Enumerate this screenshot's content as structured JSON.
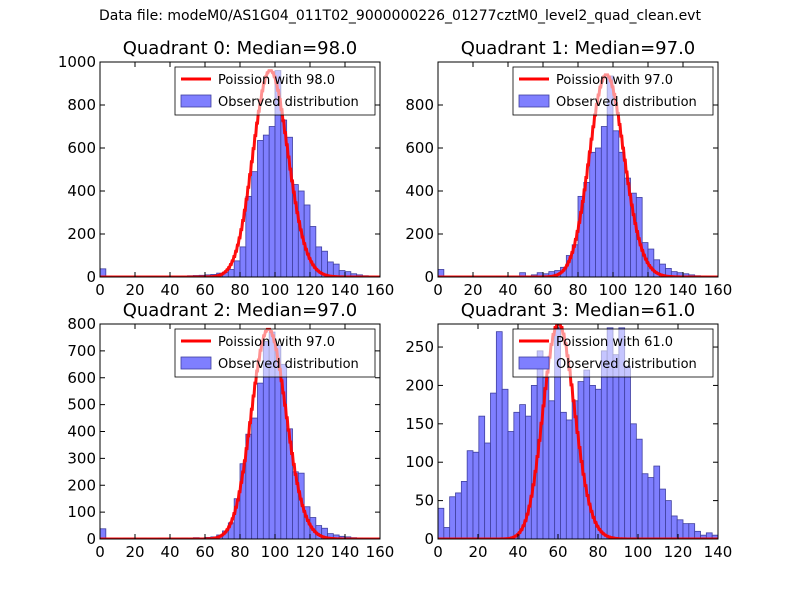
{
  "figure": {
    "suptitle": "Data file: modeM0/AS1G04_011T02_9000000226_01277cztM0_level2_quad_clean.evt"
  },
  "colors": {
    "bar_fill": "#7f7fff",
    "bar_stroke": "#3f3f9f",
    "curve": "#ff0000",
    "axis": "#000000",
    "legend_border": "#000000"
  },
  "chart_data": [
    {
      "type": "bar",
      "title": "Quadrant 0: Median=98.0",
      "xlim": [
        0,
        160
      ],
      "ylim": [
        0,
        1000
      ],
      "xticks": [
        0,
        20,
        40,
        60,
        80,
        100,
        120,
        140,
        160
      ],
      "yticks": [
        0,
        200,
        400,
        600,
        800,
        1000
      ],
      "legend": {
        "location": "upper right",
        "line_label": "Poission with 98.0",
        "bar_label": "Observed distribution"
      },
      "poisson_mean": 98.0,
      "curve_peak": 960,
      "bin_width": 3.33,
      "bins": [
        [
          0,
          38
        ],
        [
          3.33,
          4
        ],
        [
          6.67,
          3
        ],
        [
          10,
          3
        ],
        [
          13.33,
          3
        ],
        [
          16.67,
          2
        ],
        [
          20,
          3
        ],
        [
          23.33,
          2
        ],
        [
          26.67,
          3
        ],
        [
          30,
          3
        ],
        [
          33.33,
          2
        ],
        [
          36.67,
          2
        ],
        [
          40,
          3
        ],
        [
          43.33,
          3
        ],
        [
          46.67,
          4
        ],
        [
          50,
          6
        ],
        [
          53.33,
          7
        ],
        [
          56.67,
          8
        ],
        [
          60,
          10
        ],
        [
          63.33,
          12
        ],
        [
          66.67,
          18
        ],
        [
          70,
          22
        ],
        [
          73.33,
          35
        ],
        [
          76.67,
          75
        ],
        [
          80,
          140
        ],
        [
          83.33,
          375
        ],
        [
          86.67,
          490
        ],
        [
          90,
          635
        ],
        [
          93.33,
          660
        ],
        [
          96.67,
          700
        ],
        [
          100,
          960
        ],
        [
          103.33,
          730
        ],
        [
          106.67,
          650
        ],
        [
          110,
          430
        ],
        [
          113.33,
          400
        ],
        [
          116.67,
          335
        ],
        [
          120,
          235
        ],
        [
          123.33,
          140
        ],
        [
          126.67,
          120
        ],
        [
          130,
          70
        ],
        [
          133.33,
          60
        ],
        [
          136.67,
          30
        ],
        [
          140,
          25
        ],
        [
          143.33,
          15
        ],
        [
          146.67,
          10
        ],
        [
          150,
          6
        ],
        [
          153.33,
          4
        ],
        [
          156.67,
          3
        ]
      ]
    },
    {
      "type": "bar",
      "title": "Quadrant 1: Median=97.0",
      "xlim": [
        0,
        160
      ],
      "ylim": [
        0,
        1000
      ],
      "xticks": [
        0,
        20,
        40,
        60,
        80,
        100,
        120,
        140,
        160
      ],
      "yticks": [
        0,
        200,
        400,
        600,
        800
      ],
      "legend": {
        "location": "upper right",
        "line_label": "Poission with 97.0",
        "bar_label": "Observed distribution"
      },
      "poisson_mean": 97.0,
      "curve_peak": 940,
      "bin_width": 3.33,
      "bins": [
        [
          0,
          35
        ],
        [
          3.33,
          4
        ],
        [
          6.67,
          3
        ],
        [
          10,
          3
        ],
        [
          13.33,
          2
        ],
        [
          16.67,
          3
        ],
        [
          20,
          2
        ],
        [
          23.33,
          2
        ],
        [
          26.67,
          2
        ],
        [
          30,
          2
        ],
        [
          33.33,
          3
        ],
        [
          36.67,
          2
        ],
        [
          40,
          4
        ],
        [
          43.33,
          4
        ],
        [
          46.67,
          20
        ],
        [
          50,
          5
        ],
        [
          53.33,
          10
        ],
        [
          56.67,
          20
        ],
        [
          60,
          15
        ],
        [
          63.33,
          25
        ],
        [
          66.67,
          30
        ],
        [
          70,
          45
        ],
        [
          73.33,
          100
        ],
        [
          76.67,
          150
        ],
        [
          80,
          375
        ],
        [
          83.33,
          440
        ],
        [
          86.67,
          580
        ],
        [
          90,
          600
        ],
        [
          93.33,
          700
        ],
        [
          96.67,
          935
        ],
        [
          100,
          680
        ],
        [
          103.33,
          580
        ],
        [
          106.67,
          460
        ],
        [
          110,
          390
        ],
        [
          113.33,
          370
        ],
        [
          116.67,
          160
        ],
        [
          120,
          130
        ],
        [
          123.33,
          80
        ],
        [
          126.67,
          60
        ],
        [
          130,
          40
        ],
        [
          133.33,
          25
        ],
        [
          136.67,
          20
        ],
        [
          140,
          15
        ],
        [
          143.33,
          10
        ],
        [
          146.67,
          6
        ],
        [
          150,
          4
        ],
        [
          153.33,
          3
        ],
        [
          156.67,
          2
        ]
      ]
    },
    {
      "type": "bar",
      "title": "Quadrant 2: Median=97.0",
      "xlim": [
        0,
        160
      ],
      "ylim": [
        0,
        800
      ],
      "xticks": [
        0,
        20,
        40,
        60,
        80,
        100,
        120,
        140,
        160
      ],
      "yticks": [
        0,
        100,
        200,
        300,
        400,
        500,
        600,
        700,
        800
      ],
      "legend": {
        "location": "upper right",
        "line_label": "Poission with 97.0",
        "bar_label": "Observed distribution"
      },
      "poisson_mean": 97.0,
      "curve_peak": 780,
      "bin_width": 3.33,
      "bins": [
        [
          0,
          38
        ],
        [
          3.33,
          3
        ],
        [
          6.67,
          3
        ],
        [
          10,
          2
        ],
        [
          13.33,
          3
        ],
        [
          16.67,
          2
        ],
        [
          20,
          2
        ],
        [
          23.33,
          3
        ],
        [
          26.67,
          2
        ],
        [
          30,
          2
        ],
        [
          33.33,
          3
        ],
        [
          36.67,
          2
        ],
        [
          40,
          3
        ],
        [
          43.33,
          3
        ],
        [
          46.67,
          4
        ],
        [
          50,
          3
        ],
        [
          53.33,
          5
        ],
        [
          56.67,
          4
        ],
        [
          60,
          6
        ],
        [
          63.33,
          8
        ],
        [
          66.67,
          15
        ],
        [
          70,
          30
        ],
        [
          73.33,
          60
        ],
        [
          76.67,
          150
        ],
        [
          80,
          280
        ],
        [
          83.33,
          390
        ],
        [
          86.67,
          450
        ],
        [
          90,
          580
        ],
        [
          93.33,
          735
        ],
        [
          96.67,
          770
        ],
        [
          100,
          720
        ],
        [
          103.33,
          650
        ],
        [
          106.67,
          410
        ],
        [
          110,
          250
        ],
        [
          113.33,
          245
        ],
        [
          116.67,
          120
        ],
        [
          120,
          80
        ],
        [
          123.33,
          50
        ],
        [
          126.67,
          40
        ],
        [
          130,
          20
        ],
        [
          133.33,
          15
        ],
        [
          136.67,
          10
        ],
        [
          140,
          8
        ],
        [
          143.33,
          5
        ],
        [
          146.67,
          4
        ],
        [
          150,
          3
        ],
        [
          153.33,
          2
        ],
        [
          156.67,
          2
        ]
      ]
    },
    {
      "type": "bar",
      "title": "Quadrant 3: Median=61.0",
      "xlim": [
        0,
        140
      ],
      "ylim": [
        0,
        280
      ],
      "xticks": [
        0,
        20,
        40,
        60,
        80,
        100,
        120,
        140
      ],
      "yticks": [
        0,
        50,
        100,
        150,
        200,
        250
      ],
      "legend": {
        "location": "upper right",
        "line_label": "Poission with 61.0",
        "bar_label": "Observed distribution"
      },
      "poisson_mean": 61.0,
      "curve_peak": 280,
      "bin_width": 2.92,
      "bins": [
        [
          0,
          40
        ],
        [
          2.92,
          15
        ],
        [
          5.83,
          55
        ],
        [
          8.75,
          60
        ],
        [
          11.67,
          75
        ],
        [
          14.58,
          115
        ],
        [
          17.5,
          113
        ],
        [
          20.42,
          160
        ],
        [
          23.33,
          125
        ],
        [
          26.25,
          190
        ],
        [
          29.17,
          270
        ],
        [
          32.08,
          195
        ],
        [
          35,
          140
        ],
        [
          37.92,
          165
        ],
        [
          40.83,
          175
        ],
        [
          43.75,
          160
        ],
        [
          46.67,
          200
        ],
        [
          49.58,
          245
        ],
        [
          52.5,
          210
        ],
        [
          55.42,
          180
        ],
        [
          58.33,
          275
        ],
        [
          61.25,
          165
        ],
        [
          64.17,
          155
        ],
        [
          67.08,
          180
        ],
        [
          70,
          205
        ],
        [
          72.92,
          220
        ],
        [
          75.83,
          200
        ],
        [
          78.75,
          195
        ],
        [
          81.67,
          245
        ],
        [
          84.58,
          275
        ],
        [
          87.5,
          240
        ],
        [
          90.42,
          275
        ],
        [
          93.33,
          225
        ],
        [
          96.25,
          150
        ],
        [
          99.17,
          130
        ],
        [
          102.08,
          85
        ],
        [
          105,
          80
        ],
        [
          107.92,
          95
        ],
        [
          110.83,
          65
        ],
        [
          113.75,
          50
        ],
        [
          116.67,
          30
        ],
        [
          119.58,
          25
        ],
        [
          122.5,
          20
        ],
        [
          125.42,
          20
        ],
        [
          128.33,
          10
        ],
        [
          131.25,
          5
        ],
        [
          134.17,
          8
        ],
        [
          137.08,
          5
        ]
      ]
    }
  ]
}
